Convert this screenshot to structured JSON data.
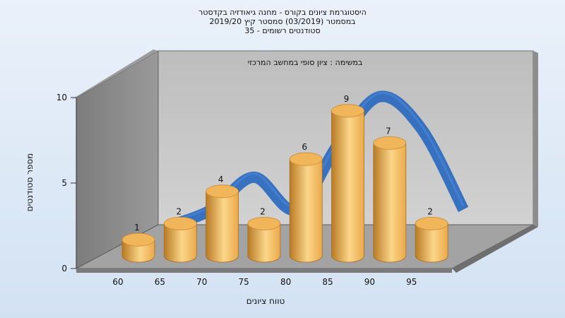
{
  "chart_data": {
    "type": "bar",
    "title_lines": [
      "היסטוגרמת ציונים בקורס - מחנה גיאודזיה בקדסטר",
      "במסמטר  (03/2019)  סמסטר קיץ 2019/20",
      "סטודנטים רשומים - 35"
    ],
    "annotation": "במשימה : ציון סופי במחשב המרכזי",
    "xlabel": "טווח ציונים",
    "ylabel": "מספר סטודנטים",
    "categories": [
      "60",
      "65",
      "70",
      "75",
      "80",
      "85",
      "90",
      "95"
    ],
    "values": [
      1,
      2,
      4,
      2,
      6,
      9,
      7,
      2
    ],
    "ylim": [
      0,
      10
    ],
    "yticks": [
      0,
      5,
      10
    ],
    "grid": false,
    "legend": "none",
    "trend_curve": true,
    "colors": {
      "bar_light": "#fbd68a",
      "bar_mid": "#eba94a",
      "bar_dark": "#b97a24",
      "bar_top": "#f2b65a",
      "curve": "#2e6bbf",
      "wall_back": "#c4c4c4",
      "wall_left": "#8a8a8a",
      "floor": "#9a9a9a",
      "frame": "#6e6e6e"
    }
  }
}
